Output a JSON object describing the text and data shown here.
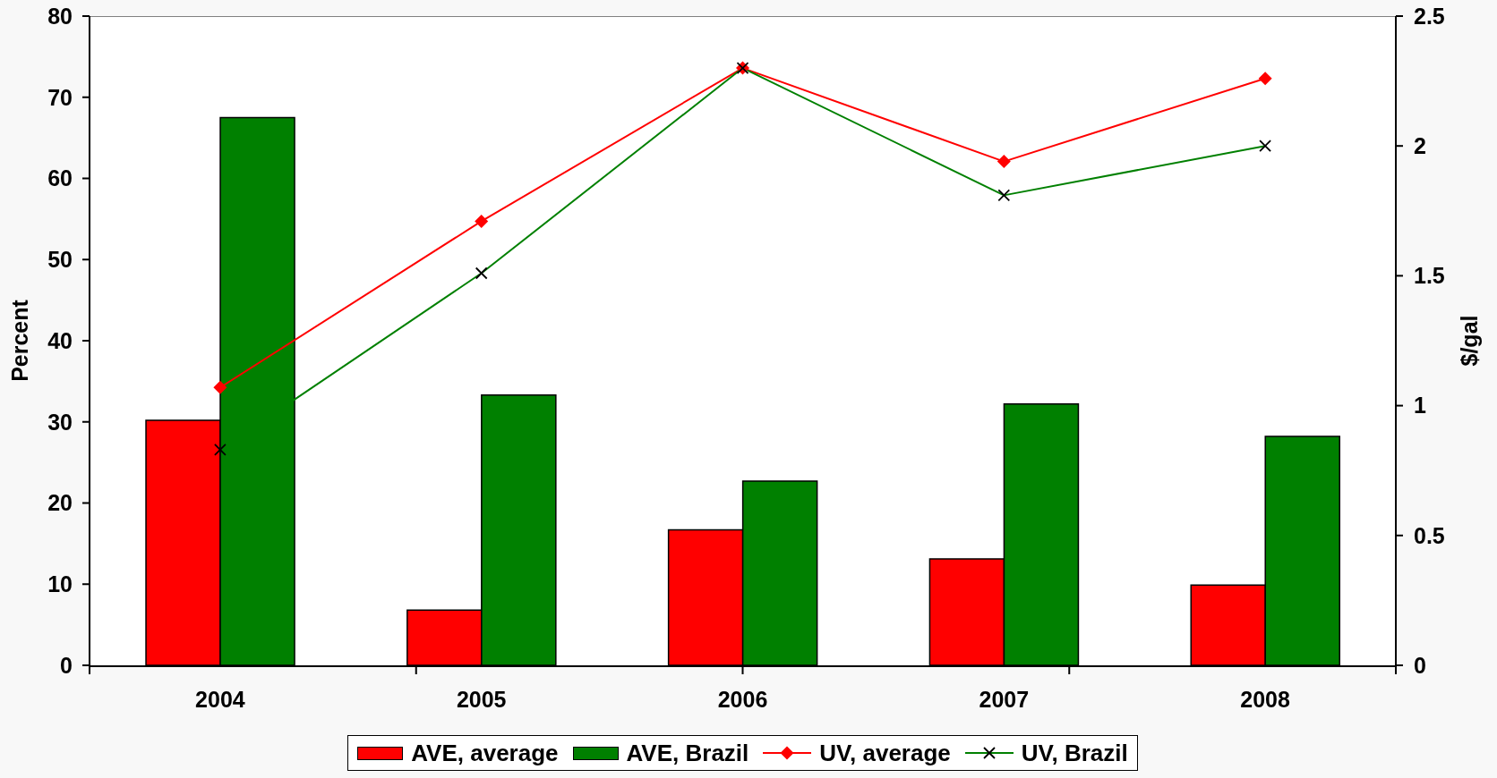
{
  "chart_data": {
    "type": "bar",
    "categories": [
      "2004",
      "2005",
      "2006",
      "2007",
      "2008"
    ],
    "ylabel": "Percent",
    "y2label": "$/gal",
    "ylim": [
      0,
      80
    ],
    "yticks": [
      0,
      10,
      20,
      30,
      40,
      50,
      60,
      70,
      80
    ],
    "y2lim": [
      0,
      2.5
    ],
    "y2ticks": [
      0,
      0.5,
      1,
      1.5,
      2,
      2.5
    ],
    "legend": "bottom",
    "series": [
      {
        "name": "AVE, average",
        "color": "#ff0000",
        "values": [
          30.2,
          6.8,
          16.7,
          13.1,
          9.9
        ]
      },
      {
        "name": "AVE, Brazil",
        "color": "#008000",
        "values": [
          67.5,
          33.3,
          22.7,
          32.2,
          28.2
        ]
      },
      {
        "name": "UV, average",
        "type": "line",
        "axis": "y2",
        "color": "#ff0000",
        "marker": "diamond",
        "values": [
          1.07,
          1.71,
          2.3,
          1.94,
          2.26
        ]
      },
      {
        "name": "UV, Brazil",
        "type": "line",
        "axis": "y2",
        "color": "#008000",
        "marker": "cross",
        "values": [
          0.83,
          1.51,
          2.3,
          1.81,
          2.0
        ]
      }
    ]
  }
}
